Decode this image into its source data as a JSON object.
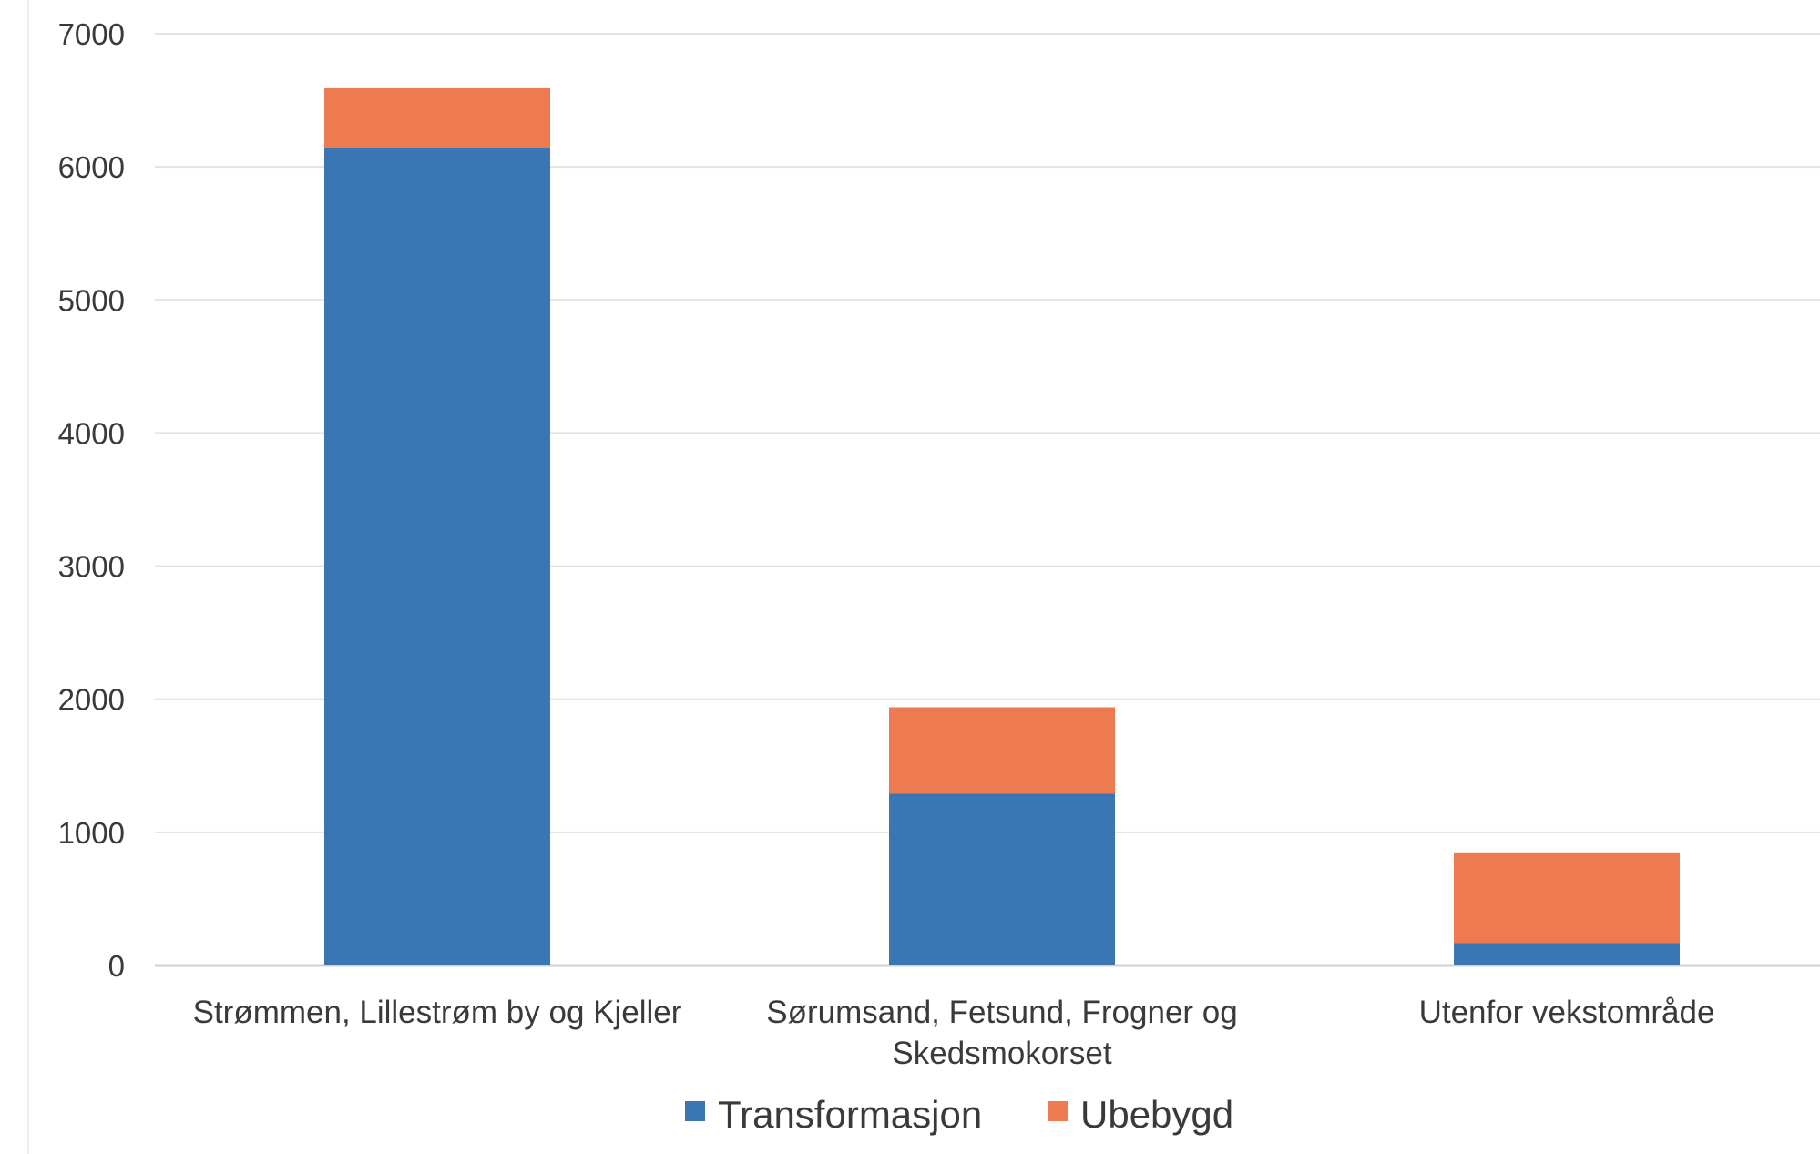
{
  "chart_data": {
    "type": "bar",
    "stacked": true,
    "title": "",
    "xlabel": "",
    "ylabel": "",
    "ylim": [
      0,
      7000
    ],
    "yticks": [
      "0",
      "1000",
      "2000",
      "3000",
      "4000",
      "5000",
      "6000",
      "7000"
    ],
    "grid": true,
    "legend_position": "bottom",
    "categories": [
      [
        "Strømmen, Lillestrøm by og Kjeller"
      ],
      [
        "Sørumsand, Fetsund, Frogner og",
        "Skedsmokorset"
      ],
      [
        "Utenfor vekstområde"
      ]
    ],
    "series": [
      {
        "name": "Transformasjon",
        "color": "#3b76b4",
        "values": [
          6140,
          1290,
          170
        ]
      },
      {
        "name": "Ubebygd",
        "color": "#ee7a4f",
        "values": [
          450,
          650,
          680
        ]
      }
    ]
  }
}
